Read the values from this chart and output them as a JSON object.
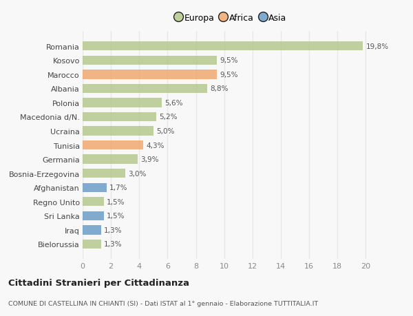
{
  "countries": [
    "Romania",
    "Kosovo",
    "Marocco",
    "Albania",
    "Polonia",
    "Macedonia d/N.",
    "Ucraina",
    "Tunisia",
    "Germania",
    "Bosnia-Erzegovina",
    "Afghanistan",
    "Regno Unito",
    "Sri Lanka",
    "Iraq",
    "Bielorussia"
  ],
  "values": [
    19.8,
    9.5,
    9.5,
    8.8,
    5.6,
    5.2,
    5.0,
    4.3,
    3.9,
    3.0,
    1.7,
    1.5,
    1.5,
    1.3,
    1.3
  ],
  "labels": [
    "19,8%",
    "9,5%",
    "9,5%",
    "8,8%",
    "5,6%",
    "5,2%",
    "5,0%",
    "4,3%",
    "3,9%",
    "3,0%",
    "1,7%",
    "1,5%",
    "1,5%",
    "1,3%",
    "1,3%"
  ],
  "continent": [
    "Europa",
    "Europa",
    "Africa",
    "Europa",
    "Europa",
    "Europa",
    "Europa",
    "Africa",
    "Europa",
    "Europa",
    "Asia",
    "Europa",
    "Asia",
    "Asia",
    "Europa"
  ],
  "colors": {
    "Europa": "#b5c98e",
    "Africa": "#f0a870",
    "Asia": "#6b9ec8"
  },
  "legend_labels": [
    "Europa",
    "Africa",
    "Asia"
  ],
  "legend_colors": [
    "#b5c98e",
    "#f0a870",
    "#6b9ec8"
  ],
  "xlim": [
    0,
    21
  ],
  "xticks": [
    0,
    2,
    4,
    6,
    8,
    10,
    12,
    14,
    16,
    18,
    20
  ],
  "title": "Cittadini Stranieri per Cittadinanza",
  "subtitle": "COMUNE DI CASTELLINA IN CHIANTI (SI) - Dati ISTAT al 1° gennaio - Elaborazione TUTTITALIA.IT",
  "bg_color": "#f8f8f8",
  "plot_bg_color": "#ffffff",
  "grid_color": "#e8e8e8",
  "bar_height": 0.65
}
